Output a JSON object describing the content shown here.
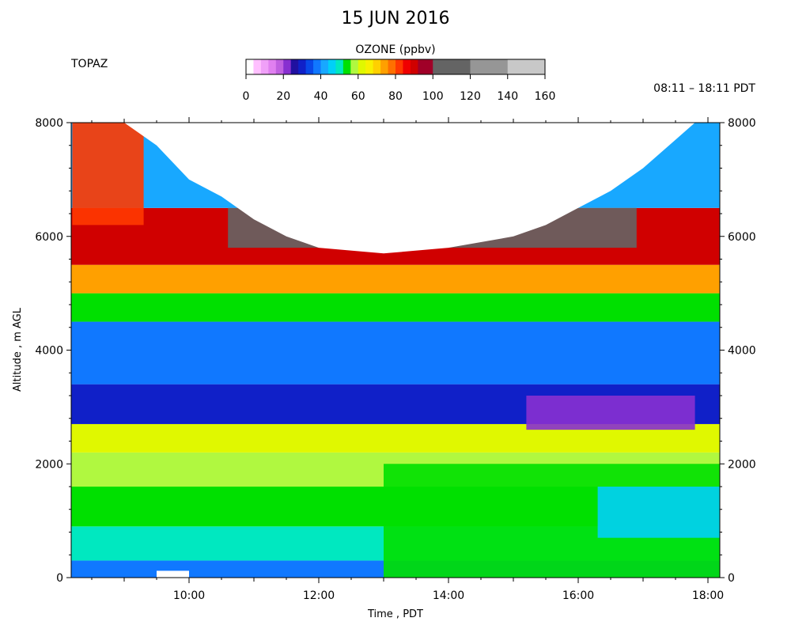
{
  "chart_data": {
    "type": "heatmap",
    "title": "15 JUN 2016",
    "station": "TOPAZ",
    "time_range": "08:11 – 18:11 PDT",
    "xlabel": "Time , PDT",
    "ylabel": "Altitude , m AGL",
    "xlim": [
      8.183,
      18.183
    ],
    "ylim": [
      0,
      8000
    ],
    "x_ticks": [
      {
        "value": 10,
        "label": "10:00"
      },
      {
        "value": 12,
        "label": "12:00"
      },
      {
        "value": 14,
        "label": "14:00"
      },
      {
        "value": 16,
        "label": "16:00"
      },
      {
        "value": 18,
        "label": "18:00"
      }
    ],
    "y_ticks": [
      {
        "value": 0,
        "label": "0"
      },
      {
        "value": 2000,
        "label": "2000"
      },
      {
        "value": 4000,
        "label": "4000"
      },
      {
        "value": 6000,
        "label": "6000"
      },
      {
        "value": 8000,
        "label": "8000"
      }
    ],
    "colorbar": {
      "title": "OZONE (ppbv)",
      "range": [
        0,
        160
      ],
      "tick_labels": [
        "0",
        "20",
        "40",
        "60",
        "80",
        "100",
        "120",
        "140",
        "160"
      ],
      "levels": [
        {
          "from": 0,
          "to": 4,
          "color": "#ffffff"
        },
        {
          "from": 4,
          "to": 8,
          "color": "#ffc0ff"
        },
        {
          "from": 8,
          "to": 12,
          "color": "#f0a0f8"
        },
        {
          "from": 12,
          "to": 16,
          "color": "#e080f0"
        },
        {
          "from": 16,
          "to": 20,
          "color": "#c060e0"
        },
        {
          "from": 20,
          "to": 24,
          "color": "#8830d0"
        },
        {
          "from": 24,
          "to": 28,
          "color": "#2010a0"
        },
        {
          "from": 28,
          "to": 32,
          "color": "#1020c8"
        },
        {
          "from": 32,
          "to": 36,
          "color": "#0848e8"
        },
        {
          "from": 36,
          "to": 40,
          "color": "#1078ff"
        },
        {
          "from": 40,
          "to": 44,
          "color": "#18a8ff"
        },
        {
          "from": 44,
          "to": 48,
          "color": "#00d0f8"
        },
        {
          "from": 48,
          "to": 52,
          "color": "#00e8c0"
        },
        {
          "from": 52,
          "to": 56,
          "color": "#00e000"
        },
        {
          "from": 56,
          "to": 60,
          "color": "#b0f840"
        },
        {
          "from": 60,
          "to": 64,
          "color": "#e0f800"
        },
        {
          "from": 64,
          "to": 68,
          "color": "#f8f000"
        },
        {
          "from": 68,
          "to": 72,
          "color": "#ffd000"
        },
        {
          "from": 72,
          "to": 76,
          "color": "#ffa000"
        },
        {
          "from": 76,
          "to": 80,
          "color": "#ff7000"
        },
        {
          "from": 80,
          "to": 84,
          "color": "#ff3800"
        },
        {
          "from": 84,
          "to": 88,
          "color": "#f00000"
        },
        {
          "from": 88,
          "to": 92,
          "color": "#d00000"
        },
        {
          "from": 92,
          "to": 100,
          "color": "#a00028"
        },
        {
          "from": 100,
          "to": 120,
          "color": "#646464"
        },
        {
          "from": 120,
          "to": 140,
          "color": "#969696"
        },
        {
          "from": 140,
          "to": 160,
          "color": "#c8c8c8"
        }
      ]
    },
    "layers": [
      {
        "alt_range": [
          0,
          300
        ],
        "ozone_ppbv": 36
      },
      {
        "alt_range": [
          300,
          900
        ],
        "ozone_ppbv": 50
      },
      {
        "alt_range": [
          900,
          1600
        ],
        "ozone_ppbv": 54
      },
      {
        "alt_range": [
          1600,
          2200
        ],
        "ozone_ppbv": 57
      },
      {
        "alt_range": [
          2200,
          2700
        ],
        "ozone_ppbv": 62
      },
      {
        "alt_range": [
          2700,
          3400
        ],
        "ozone_ppbv": 30
      },
      {
        "alt_range": [
          3400,
          4500
        ],
        "ozone_ppbv": 36
      },
      {
        "alt_range": [
          4500,
          5000
        ],
        "ozone_ppbv": 55
      },
      {
        "alt_range": [
          5000,
          5500
        ],
        "ozone_ppbv": 74
      },
      {
        "alt_range": [
          5500,
          6500
        ],
        "ozone_ppbv": 88
      },
      {
        "alt_range": [
          6500,
          8000
        ],
        "ozone_ppbv": 40
      }
    ],
    "features": [
      {
        "x_range": [
          15.2,
          17.8
        ],
        "alt_range": [
          2600,
          3200
        ],
        "ozone_ppbv": 22
      },
      {
        "x_range": [
          10.6,
          16.9
        ],
        "alt_range": [
          5800,
          6500
        ],
        "ozone_ppbv": 105
      },
      {
        "x_range": [
          8.2,
          9.3
        ],
        "alt_range": [
          6200,
          8000
        ],
        "ozone_ppbv": 82
      },
      {
        "x_range": [
          13.0,
          18.183
        ],
        "alt_range": [
          0,
          2000
        ],
        "ozone_ppbv": 53
      },
      {
        "x_range": [
          16.3,
          18.183
        ],
        "alt_range": [
          700,
          1600
        ],
        "ozone_ppbv": 47
      },
      {
        "x_range": [
          9.5,
          10.0
        ],
        "alt_range": [
          0,
          120
        ],
        "ozone_ppbv": 0
      }
    ],
    "data_ceiling": [
      {
        "x": 8.183,
        "alt": 8000
      },
      {
        "x": 9.0,
        "alt": 8000
      },
      {
        "x": 9.5,
        "alt": 7600
      },
      {
        "x": 10.0,
        "alt": 7000
      },
      {
        "x": 10.5,
        "alt": 6700
      },
      {
        "x": 11.0,
        "alt": 6300
      },
      {
        "x": 11.5,
        "alt": 6000
      },
      {
        "x": 12.0,
        "alt": 5800
      },
      {
        "x": 13.0,
        "alt": 5700
      },
      {
        "x": 14.0,
        "alt": 5800
      },
      {
        "x": 15.0,
        "alt": 6000
      },
      {
        "x": 15.5,
        "alt": 6200
      },
      {
        "x": 16.0,
        "alt": 6500
      },
      {
        "x": 16.5,
        "alt": 6800
      },
      {
        "x": 17.0,
        "alt": 7200
      },
      {
        "x": 17.5,
        "alt": 7700
      },
      {
        "x": 17.8,
        "alt": 8000
      },
      {
        "x": 18.183,
        "alt": 8000
      }
    ]
  }
}
